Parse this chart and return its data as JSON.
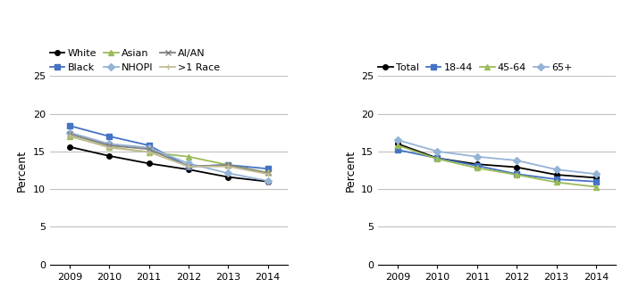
{
  "years": [
    2009,
    2010,
    2011,
    2012,
    2013,
    2014
  ],
  "left_chart": {
    "series_order": [
      "White",
      "Black",
      "Asian",
      "NHOPI",
      "AI/AN",
      ">1 Race"
    ],
    "series": {
      "White": [
        15.6,
        14.4,
        13.4,
        12.6,
        11.6,
        11.0
      ],
      "Black": [
        18.4,
        17.0,
        15.8,
        13.0,
        13.2,
        12.7
      ],
      "Asian": [
        17.0,
        15.6,
        14.9,
        14.3,
        13.2,
        12.2
      ],
      "NHOPI": [
        17.5,
        16.0,
        15.5,
        13.4,
        12.1,
        11.1
      ],
      "AI/AN": [
        17.3,
        15.8,
        15.3,
        13.0,
        13.2,
        12.1
      ],
      ">1 Race": [
        17.1,
        15.5,
        14.9,
        13.0,
        13.0,
        12.0
      ]
    },
    "colors": {
      "White": "#000000",
      "Black": "#4472C4",
      "Asian": "#9BBB59",
      "NHOPI": "#95B3D7",
      "AI/AN": "#808080",
      ">1 Race": "#C4BD97"
    },
    "markers": {
      "White": "o",
      "Black": "s",
      "Asian": "^",
      "NHOPI": "D",
      "AI/AN": "x",
      ">1 Race": "+"
    },
    "linestyles": {
      "White": "-",
      "Black": "-",
      "Asian": "-",
      "NHOPI": "-",
      "AI/AN": "-",
      ">1 Race": "-"
    }
  },
  "right_chart": {
    "series_order": [
      "Total",
      "18-44",
      "45-64",
      "65+"
    ],
    "series": {
      "Total": [
        16.0,
        14.1,
        13.3,
        12.9,
        11.9,
        11.5
      ],
      "18-44": [
        15.2,
        14.1,
        13.1,
        12.0,
        11.3,
        11.0
      ],
      "45-64": [
        15.8,
        14.0,
        12.8,
        11.9,
        10.9,
        10.3
      ],
      "65+": [
        16.5,
        15.0,
        14.3,
        13.8,
        12.6,
        12.0
      ]
    },
    "colors": {
      "Total": "#000000",
      "18-44": "#4472C4",
      "45-64": "#9BBB59",
      "65+": "#95B3D7"
    },
    "markers": {
      "Total": "o",
      "18-44": "s",
      "45-64": "^",
      "65+": "D"
    },
    "linestyles": {
      "Total": "-",
      "18-44": "-",
      "45-64": "-",
      "65+": "-"
    }
  },
  "ylim": [
    0,
    25
  ],
  "yticks": [
    0,
    5,
    10,
    15,
    20,
    25
  ],
  "ylabel": "Percent",
  "background_color": "#ffffff",
  "grid_color": "#c0c0c0"
}
